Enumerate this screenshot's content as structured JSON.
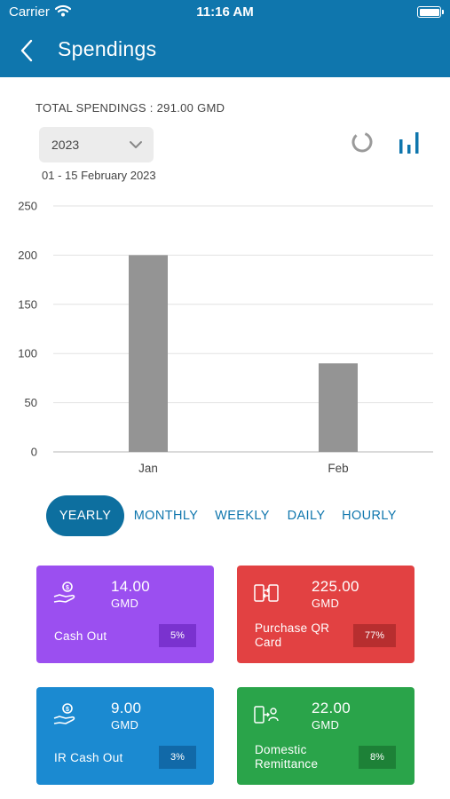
{
  "status_bar": {
    "carrier": "Carrier",
    "time": "11:16 AM"
  },
  "header": {
    "title": "Spendings",
    "back_icon": "chevron-left-icon"
  },
  "summary": {
    "total_label": "TOTAL SPENDINGS : 291.00 GMD",
    "year_selected": "2023",
    "date_range": "01 - 15 February 2023"
  },
  "view_toggle": {
    "donut_icon": "donut-chart-icon",
    "bar_icon": "bar-chart-icon",
    "accent": "#0f76ad"
  },
  "chart_data": {
    "type": "bar",
    "categories": [
      "Jan",
      "Feb"
    ],
    "values": [
      200,
      90
    ],
    "ylim": [
      0,
      250
    ],
    "yticks": [
      0,
      50,
      100,
      150,
      200,
      250
    ],
    "bar_color": "#949494",
    "grid": true
  },
  "periods": {
    "items": [
      "YEARLY",
      "MONTHLY",
      "WEEKLY",
      "DAILY",
      "HOURLY"
    ],
    "active": "YEARLY"
  },
  "categories": [
    {
      "amount": "14.00",
      "currency": "GMD",
      "label": [
        "Cash Out"
      ],
      "percent": "5%",
      "color": "#9b4ff0",
      "pill": "#7a32cf",
      "icon": "cash-hand-icon"
    },
    {
      "amount": "225.00",
      "currency": "GMD",
      "label": [
        "Purchase QR",
        "Card"
      ],
      "percent": "77%",
      "color": "#e24142",
      "pill": "#b72e2f",
      "icon": "phone-transfer-icon"
    },
    {
      "amount": "9.00",
      "currency": "GMD",
      "label": [
        "IR Cash Out"
      ],
      "percent": "3%",
      "color": "#1b8ad1",
      "pill": "#1169a8",
      "icon": "cash-hand-icon"
    },
    {
      "amount": "22.00",
      "currency": "GMD",
      "label": [
        "Domestic",
        "Remittance"
      ],
      "percent": "8%",
      "color": "#2aa44a",
      "pill": "#1d8137",
      "icon": "phone-remit-icon"
    }
  ]
}
